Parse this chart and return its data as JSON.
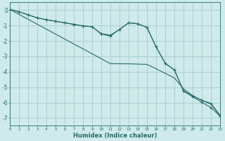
{
  "xlabel": "Humidex (Indice chaleur)",
  "bg_color": "#ceeaea",
  "grid_color": "#a8cccc",
  "line_color": "#2a6b6b",
  "x_data": [
    0,
    1,
    2,
    3,
    4,
    5,
    6,
    7,
    8,
    9,
    10,
    11,
    12,
    13,
    14,
    15,
    16,
    17,
    18,
    19,
    20,
    21,
    22,
    23
  ],
  "line1_y": [
    0.05,
    -0.1,
    -0.3,
    -0.5,
    -0.62,
    -0.72,
    -0.82,
    -0.92,
    -1.02,
    -1.08,
    -1.55,
    -1.68,
    -1.25,
    -0.82,
    -0.88,
    -1.12,
    -2.38,
    -3.45,
    -3.88,
    -5.25,
    -5.55,
    -5.85,
    -6.05,
    -6.82
  ],
  "line2_y": [
    0.05,
    -0.1,
    -0.3,
    -0.5,
    -0.62,
    -0.72,
    -0.82,
    -0.92,
    -1.02,
    -1.08,
    -1.52,
    -1.62,
    -1.25,
    -0.82,
    -0.88,
    -1.12,
    -2.38,
    -3.45,
    -3.88,
    -5.25,
    -5.62,
    -5.98,
    -6.32,
    -6.88
  ],
  "line_straight_y": [
    0.05,
    -0.27,
    -0.59,
    -0.91,
    -1.23,
    -1.55,
    -1.87,
    -2.19,
    -2.51,
    -2.83,
    -3.15,
    -3.47,
    -3.48,
    -3.48,
    -3.5,
    -3.52,
    -3.8,
    -4.1,
    -4.4,
    -5.1,
    -5.55,
    -5.85,
    -6.1,
    -6.85
  ],
  "xlim": [
    0,
    23
  ],
  "ylim": [
    -7.5,
    0.5
  ],
  "yticks": [
    0,
    -1,
    -2,
    -3,
    -4,
    -5,
    -6,
    -7
  ],
  "xticks": [
    0,
    1,
    2,
    3,
    4,
    5,
    6,
    7,
    8,
    9,
    10,
    11,
    12,
    13,
    14,
    15,
    16,
    17,
    18,
    19,
    20,
    21,
    22,
    23
  ]
}
